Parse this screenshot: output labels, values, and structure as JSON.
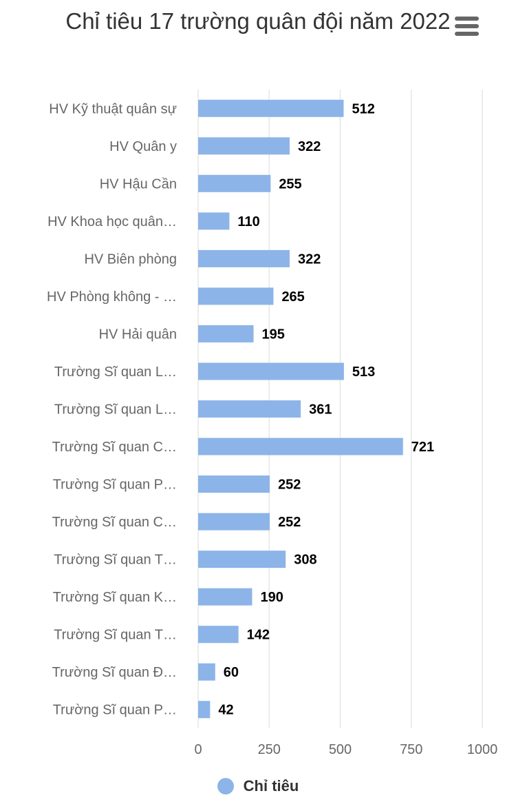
{
  "chart_title": "Chỉ tiêu 17 trường quân đội năm 2022",
  "menu_icon": "hamburger-menu-icon",
  "colors": {
    "bar": "#8cb4e8",
    "grid": "#e6e6e6",
    "label": "#666666",
    "data_label": "#000000"
  },
  "legend": {
    "label": "Chỉ tiêu",
    "position": "bottom-center"
  },
  "chart_data": {
    "type": "bar",
    "orientation": "horizontal",
    "title": "Chỉ tiêu 17 trường quân đội năm 2022",
    "categories": [
      "HV Kỹ thuật quân sự",
      "HV Quân y",
      "HV Hậu Cần",
      "HV Khoa học quân…",
      "HV Biên phòng",
      "HV Phòng không - …",
      "HV Hải quân",
      "Trường Sĩ quan L…",
      "Trường Sĩ quan L…",
      "Trường Sĩ quan C…",
      "Trường Sĩ quan P…",
      "Trường Sĩ quan C…",
      "Trường Sĩ quan T…",
      "Trường Sĩ quan K…",
      "Trường Sĩ quan T…",
      "Trường Sĩ quan Đ…",
      "Trường Sĩ quan P…"
    ],
    "series": [
      {
        "name": "Chỉ tiêu",
        "values": [
          512,
          322,
          255,
          110,
          322,
          265,
          195,
          513,
          361,
          721,
          252,
          252,
          308,
          190,
          142,
          60,
          42
        ]
      }
    ],
    "xlim": [
      0,
      1000
    ],
    "xticks": [
      0,
      250,
      500,
      750,
      1000
    ],
    "grid": "vertical",
    "data_labels": true
  }
}
